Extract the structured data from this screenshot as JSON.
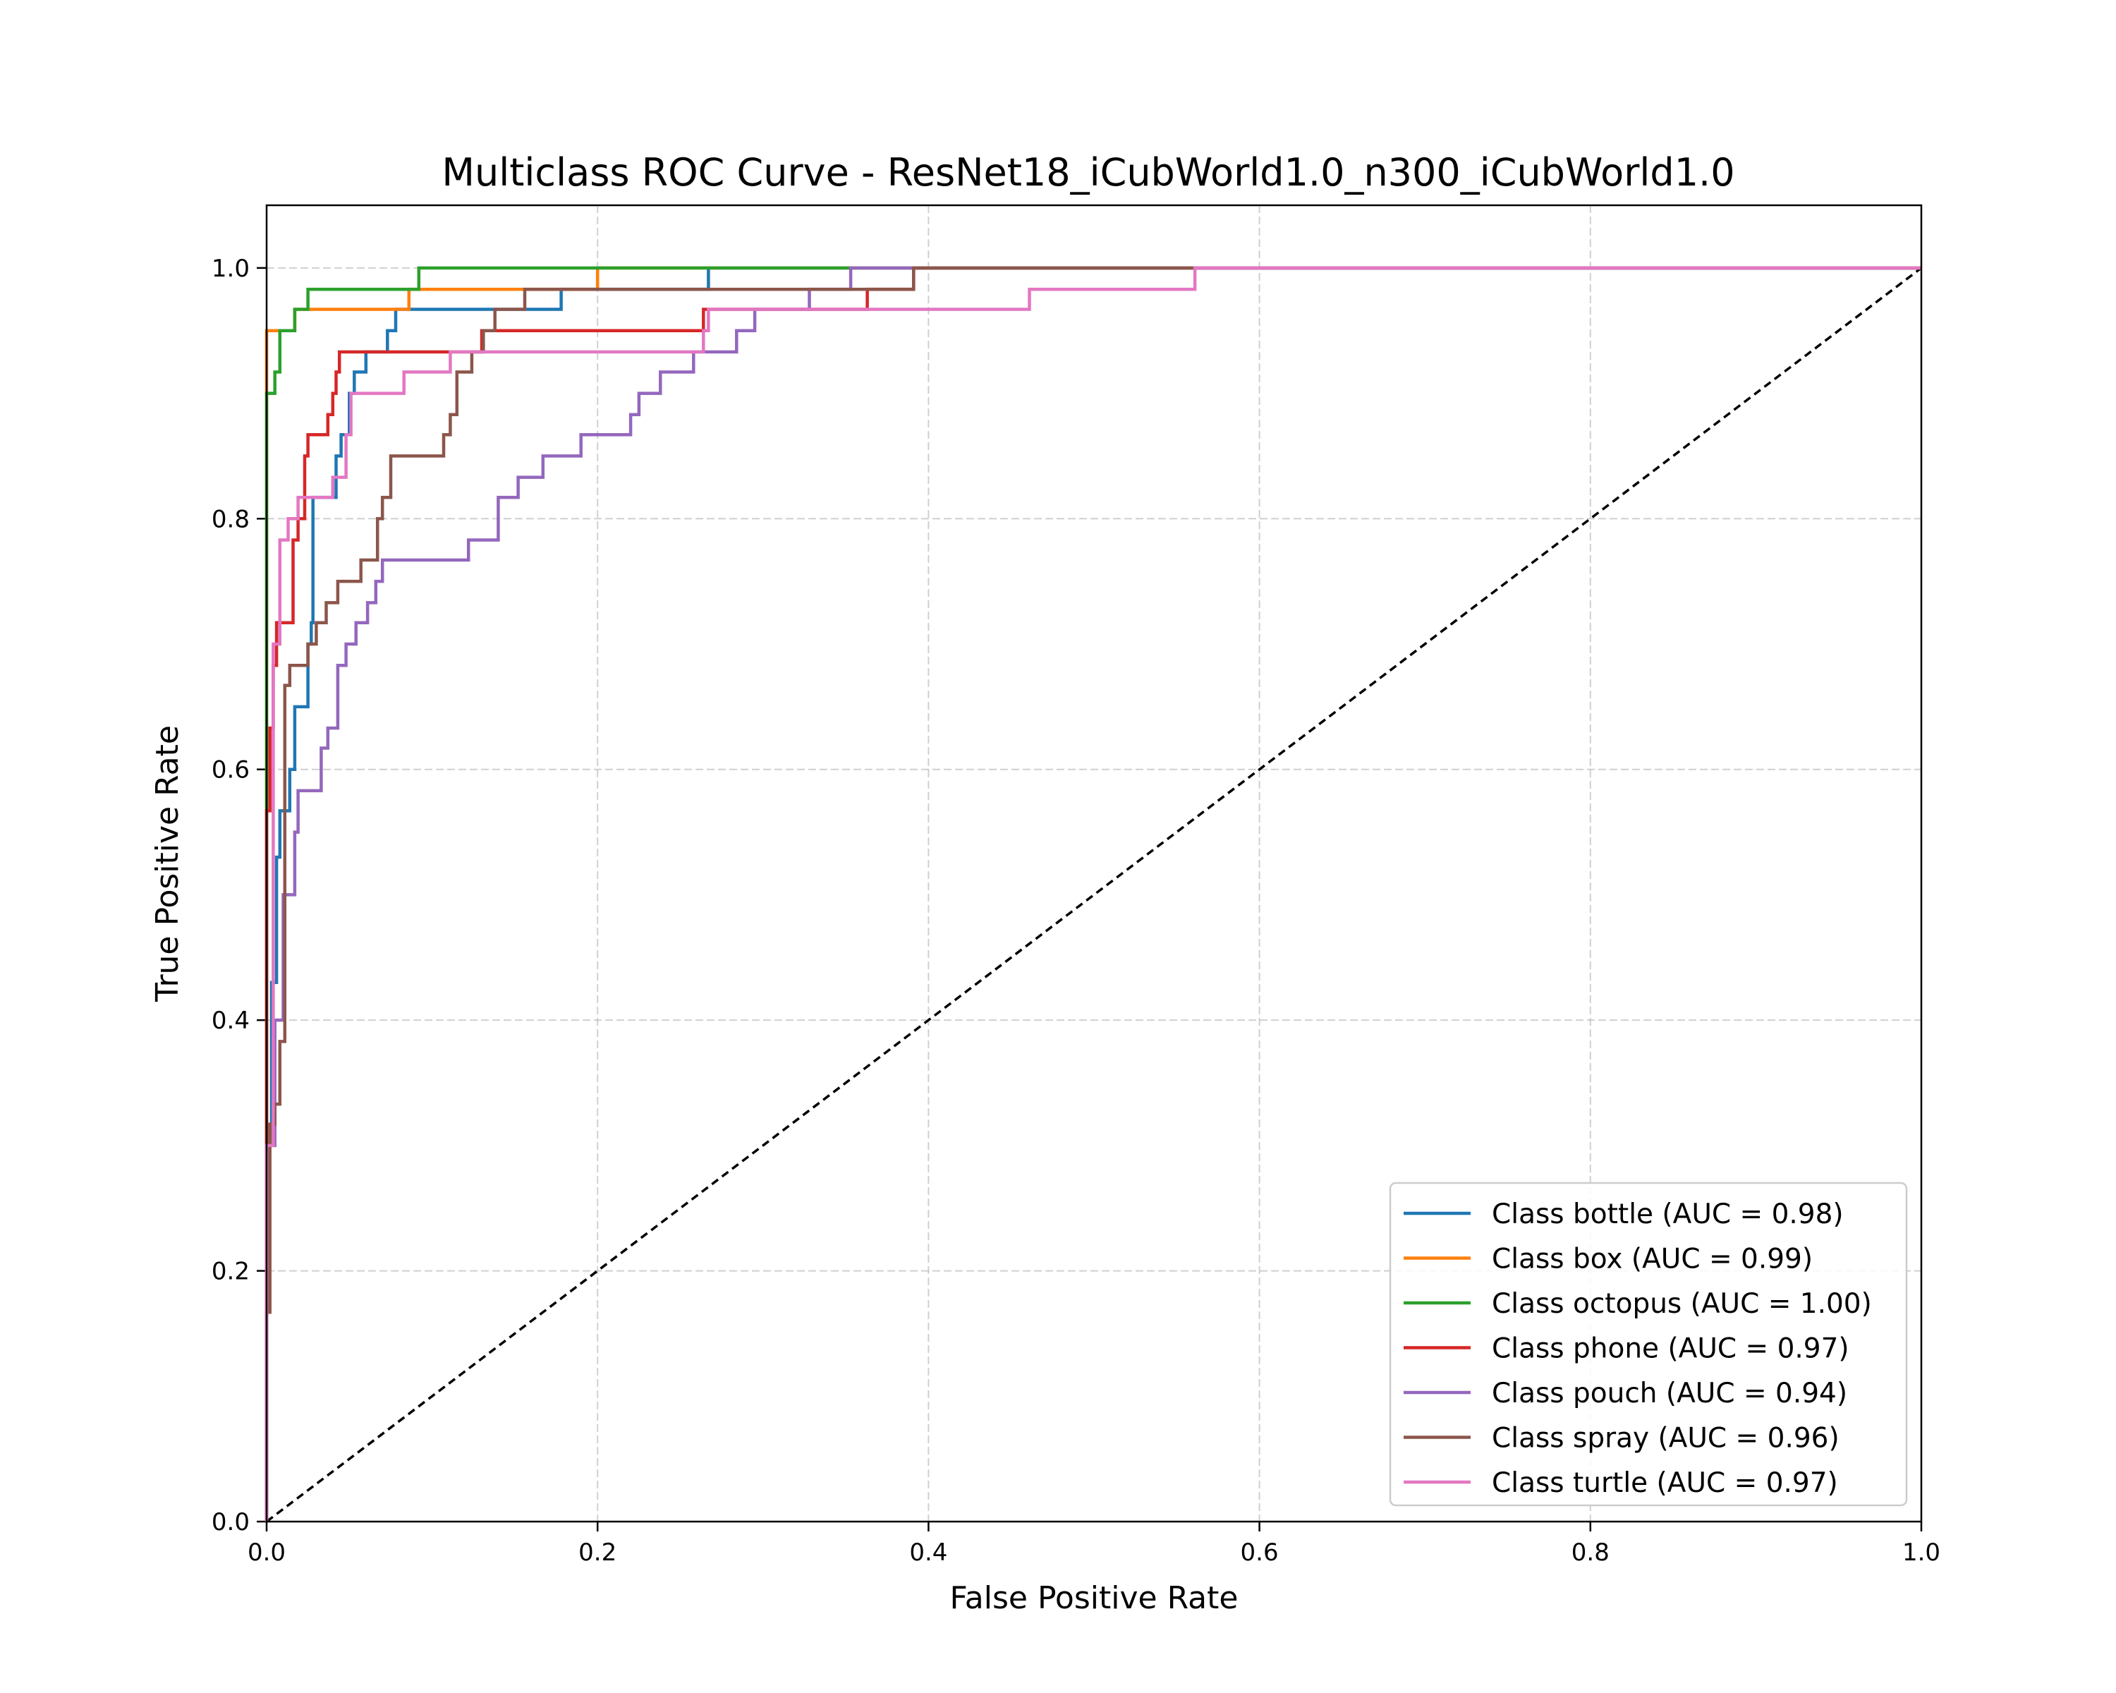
{
  "chart_data": {
    "type": "line",
    "title": "Multiclass ROC Curve - ResNet18_iCubWorld1.0_n300_iCubWorld1.0",
    "xlabel": "False Positive Rate",
    "ylabel": "True Positive Rate",
    "xlim": [
      0.0,
      1.0
    ],
    "ylim": [
      0.0,
      1.05
    ],
    "grid": true,
    "legend_position": "lower-right",
    "xticks": [
      0.0,
      0.2,
      0.4,
      0.6,
      0.8,
      1.0
    ],
    "xtick_labels": [
      "0.0",
      "0.2",
      "0.4",
      "0.6",
      "0.8",
      "1.0"
    ],
    "yticks": [
      0.0,
      0.2,
      0.4,
      0.6,
      0.8,
      1.0
    ],
    "ytick_labels": [
      "0.0",
      "0.2",
      "0.4",
      "0.6",
      "0.8",
      "1.0"
    ],
    "diagonal": {
      "x": [
        0,
        1
      ],
      "y": [
        0,
        1
      ],
      "color": "#000000",
      "style": "dashed"
    },
    "series": [
      {
        "name": "Class bottle (AUC = 0.98)",
        "color": "#1f77b4",
        "points": [
          [
            0,
            0
          ],
          [
            0,
            0.3
          ],
          [
            0.003,
            0.3
          ],
          [
            0.003,
            0.43
          ],
          [
            0.006,
            0.43
          ],
          [
            0.006,
            0.53
          ],
          [
            0.008,
            0.53
          ],
          [
            0.008,
            0.567
          ],
          [
            0.014,
            0.567
          ],
          [
            0.014,
            0.6
          ],
          [
            0.017,
            0.6
          ],
          [
            0.017,
            0.65
          ],
          [
            0.025,
            0.65
          ],
          [
            0.025,
            0.7
          ],
          [
            0.027,
            0.7
          ],
          [
            0.027,
            0.717
          ],
          [
            0.028,
            0.717
          ],
          [
            0.028,
            0.817
          ],
          [
            0.042,
            0.817
          ],
          [
            0.042,
            0.85
          ],
          [
            0.045,
            0.85
          ],
          [
            0.045,
            0.867
          ],
          [
            0.05,
            0.867
          ],
          [
            0.05,
            0.9
          ],
          [
            0.053,
            0.9
          ],
          [
            0.053,
            0.917
          ],
          [
            0.06,
            0.917
          ],
          [
            0.06,
            0.933
          ],
          [
            0.073,
            0.933
          ],
          [
            0.073,
            0.95
          ],
          [
            0.078,
            0.95
          ],
          [
            0.078,
            0.967
          ],
          [
            0.178,
            0.967
          ],
          [
            0.178,
            0.983
          ],
          [
            0.267,
            0.983
          ],
          [
            0.267,
            1.0
          ],
          [
            1.0,
            1.0
          ]
        ]
      },
      {
        "name": "Class box (AUC = 0.99)",
        "color": "#ff7f0e",
        "points": [
          [
            0,
            0
          ],
          [
            0,
            0.95
          ],
          [
            0.017,
            0.95
          ],
          [
            0.017,
            0.967
          ],
          [
            0.086,
            0.967
          ],
          [
            0.086,
            0.983
          ],
          [
            0.2,
            0.983
          ],
          [
            0.2,
            1.0
          ],
          [
            1.0,
            1.0
          ]
        ]
      },
      {
        "name": "Class octopus (AUC = 1.00)",
        "color": "#2ca02c",
        "points": [
          [
            0,
            0
          ],
          [
            0,
            0.9
          ],
          [
            0.005,
            0.9
          ],
          [
            0.005,
            0.917
          ],
          [
            0.008,
            0.917
          ],
          [
            0.008,
            0.95
          ],
          [
            0.017,
            0.95
          ],
          [
            0.017,
            0.967
          ],
          [
            0.025,
            0.967
          ],
          [
            0.025,
            0.983
          ],
          [
            0.092,
            0.983
          ],
          [
            0.092,
            1.0
          ],
          [
            1.0,
            1.0
          ]
        ]
      },
      {
        "name": "Class phone (AUC = 0.97)",
        "color": "#d62728",
        "points": [
          [
            0,
            0
          ],
          [
            0,
            0.567
          ],
          [
            0.002,
            0.567
          ],
          [
            0.002,
            0.633
          ],
          [
            0.004,
            0.633
          ],
          [
            0.004,
            0.683
          ],
          [
            0.006,
            0.683
          ],
          [
            0.006,
            0.717
          ],
          [
            0.016,
            0.717
          ],
          [
            0.016,
            0.783
          ],
          [
            0.019,
            0.783
          ],
          [
            0.019,
            0.8
          ],
          [
            0.023,
            0.8
          ],
          [
            0.023,
            0.85
          ],
          [
            0.025,
            0.85
          ],
          [
            0.025,
            0.867
          ],
          [
            0.037,
            0.867
          ],
          [
            0.037,
            0.883
          ],
          [
            0.04,
            0.883
          ],
          [
            0.04,
            0.9
          ],
          [
            0.042,
            0.9
          ],
          [
            0.042,
            0.917
          ],
          [
            0.044,
            0.917
          ],
          [
            0.044,
            0.933
          ],
          [
            0.13,
            0.933
          ],
          [
            0.13,
            0.95
          ],
          [
            0.264,
            0.95
          ],
          [
            0.264,
            0.967
          ],
          [
            0.363,
            0.967
          ],
          [
            0.363,
            0.983
          ],
          [
            0.391,
            0.983
          ],
          [
            0.391,
            1.0
          ],
          [
            1.0,
            1.0
          ]
        ]
      },
      {
        "name": "Class pouch (AUC = 0.94)",
        "color": "#9467bd",
        "points": [
          [
            0,
            0
          ],
          [
            0,
            0.3
          ],
          [
            0.005,
            0.3
          ],
          [
            0.005,
            0.4
          ],
          [
            0.01,
            0.4
          ],
          [
            0.01,
            0.5
          ],
          [
            0.017,
            0.5
          ],
          [
            0.017,
            0.55
          ],
          [
            0.019,
            0.55
          ],
          [
            0.019,
            0.583
          ],
          [
            0.033,
            0.583
          ],
          [
            0.033,
            0.617
          ],
          [
            0.037,
            0.617
          ],
          [
            0.037,
            0.633
          ],
          [
            0.043,
            0.633
          ],
          [
            0.043,
            0.683
          ],
          [
            0.048,
            0.683
          ],
          [
            0.048,
            0.7
          ],
          [
            0.054,
            0.7
          ],
          [
            0.054,
            0.717
          ],
          [
            0.061,
            0.717
          ],
          [
            0.061,
            0.733
          ],
          [
            0.066,
            0.733
          ],
          [
            0.066,
            0.75
          ],
          [
            0.07,
            0.75
          ],
          [
            0.07,
            0.767
          ],
          [
            0.122,
            0.767
          ],
          [
            0.122,
            0.783
          ],
          [
            0.14,
            0.783
          ],
          [
            0.14,
            0.817
          ],
          [
            0.152,
            0.817
          ],
          [
            0.152,
            0.833
          ],
          [
            0.167,
            0.833
          ],
          [
            0.167,
            0.85
          ],
          [
            0.19,
            0.85
          ],
          [
            0.19,
            0.867
          ],
          [
            0.22,
            0.867
          ],
          [
            0.22,
            0.883
          ],
          [
            0.225,
            0.883
          ],
          [
            0.225,
            0.9
          ],
          [
            0.238,
            0.9
          ],
          [
            0.238,
            0.917
          ],
          [
            0.258,
            0.917
          ],
          [
            0.258,
            0.933
          ],
          [
            0.284,
            0.933
          ],
          [
            0.284,
            0.95
          ],
          [
            0.295,
            0.95
          ],
          [
            0.295,
            0.967
          ],
          [
            0.328,
            0.967
          ],
          [
            0.328,
            0.983
          ],
          [
            0.353,
            0.983
          ],
          [
            0.353,
            1.0
          ],
          [
            1.0,
            1.0
          ]
        ]
      },
      {
        "name": "Class spray (AUC = 0.96)",
        "color": "#8c564b",
        "points": [
          [
            0,
            0
          ],
          [
            0,
            0.167
          ],
          [
            0.002,
            0.167
          ],
          [
            0.002,
            0.317
          ],
          [
            0.005,
            0.317
          ],
          [
            0.005,
            0.333
          ],
          [
            0.008,
            0.333
          ],
          [
            0.008,
            0.383
          ],
          [
            0.011,
            0.383
          ],
          [
            0.011,
            0.667
          ],
          [
            0.014,
            0.667
          ],
          [
            0.014,
            0.683
          ],
          [
            0.025,
            0.683
          ],
          [
            0.025,
            0.7
          ],
          [
            0.03,
            0.7
          ],
          [
            0.03,
            0.717
          ],
          [
            0.036,
            0.717
          ],
          [
            0.036,
            0.733
          ],
          [
            0.043,
            0.733
          ],
          [
            0.043,
            0.75
          ],
          [
            0.057,
            0.75
          ],
          [
            0.057,
            0.767
          ],
          [
            0.067,
            0.767
          ],
          [
            0.067,
            0.8
          ],
          [
            0.07,
            0.8
          ],
          [
            0.07,
            0.817
          ],
          [
            0.075,
            0.817
          ],
          [
            0.075,
            0.85
          ],
          [
            0.107,
            0.85
          ],
          [
            0.107,
            0.867
          ],
          [
            0.111,
            0.867
          ],
          [
            0.111,
            0.883
          ],
          [
            0.115,
            0.883
          ],
          [
            0.115,
            0.917
          ],
          [
            0.124,
            0.917
          ],
          [
            0.124,
            0.933
          ],
          [
            0.131,
            0.933
          ],
          [
            0.131,
            0.95
          ],
          [
            0.138,
            0.95
          ],
          [
            0.138,
            0.967
          ],
          [
            0.156,
            0.967
          ],
          [
            0.156,
            0.983
          ],
          [
            0.391,
            0.983
          ],
          [
            0.391,
            1.0
          ],
          [
            1.0,
            1.0
          ]
        ]
      },
      {
        "name": "Class turtle (AUC = 0.97)",
        "color": "#e377c2",
        "points": [
          [
            0,
            0
          ],
          [
            0,
            0.3
          ],
          [
            0.004,
            0.3
          ],
          [
            0.004,
            0.7
          ],
          [
            0.008,
            0.7
          ],
          [
            0.008,
            0.783
          ],
          [
            0.013,
            0.783
          ],
          [
            0.013,
            0.8
          ],
          [
            0.019,
            0.8
          ],
          [
            0.019,
            0.817
          ],
          [
            0.04,
            0.817
          ],
          [
            0.04,
            0.833
          ],
          [
            0.048,
            0.833
          ],
          [
            0.048,
            0.867
          ],
          [
            0.051,
            0.867
          ],
          [
            0.051,
            0.9
          ],
          [
            0.083,
            0.9
          ],
          [
            0.083,
            0.917
          ],
          [
            0.111,
            0.917
          ],
          [
            0.111,
            0.933
          ],
          [
            0.264,
            0.933
          ],
          [
            0.264,
            0.95
          ],
          [
            0.267,
            0.95
          ],
          [
            0.267,
            0.967
          ],
          [
            0.461,
            0.967
          ],
          [
            0.461,
            0.983
          ],
          [
            0.561,
            0.983
          ],
          [
            0.561,
            1.0
          ],
          [
            1.0,
            1.0
          ]
        ]
      }
    ]
  }
}
